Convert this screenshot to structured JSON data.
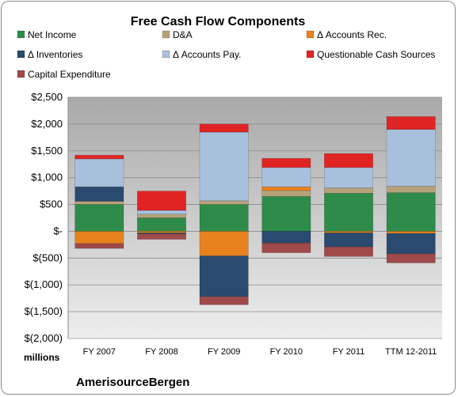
{
  "chart_data": {
    "type": "bar",
    "stacked": true,
    "title": "Free Cash Flow Components",
    "categories": [
      "FY 2007",
      "FY 2008",
      "FY 2009",
      "FY 2010",
      "FY 2011",
      "TTM 12-2011"
    ],
    "ylim": [
      -2000,
      2500
    ],
    "yticks": [
      2500,
      2000,
      1500,
      1000,
      500,
      0,
      -500,
      -1000,
      -1500,
      -2000
    ],
    "ytick_labels": [
      "$2,500",
      "$2,000",
      "$1,500",
      "$1,000",
      "$500",
      "$-",
      "$(500)",
      "$(1,000)",
      "$(1,500)",
      "$(2,000)"
    ],
    "unit_label": "millions",
    "grid": true,
    "legend_position": "top",
    "series": [
      {
        "name": "Net Income",
        "color": "#2e8b4a",
        "values": [
          500,
          250,
          500,
          650,
          710,
          720
        ]
      },
      {
        "name": "D&A",
        "color": "#b5a27a",
        "values": [
          60,
          70,
          70,
          110,
          100,
          120
        ]
      },
      {
        "name": "Δ Accounts Rec.",
        "color": "#e8821e",
        "values": [
          -230,
          -30,
          -460,
          70,
          -30,
          -40
        ]
      },
      {
        "name": "Δ Inventories",
        "color": "#2b4a6f",
        "values": [
          270,
          -20,
          -760,
          -220,
          -260,
          -380
        ]
      },
      {
        "name": "Δ Accounts Pay.",
        "color": "#a9c0dd",
        "values": [
          520,
          70,
          1280,
          360,
          380,
          1060
        ]
      },
      {
        "name": "Questionable Cash Sources",
        "color": "#e02424",
        "values": [
          70,
          360,
          150,
          170,
          260,
          240
        ]
      },
      {
        "name": "Capital Expenditure",
        "color": "#9e4a4a",
        "values": [
          -90,
          -100,
          -150,
          -180,
          -180,
          -170
        ]
      }
    ]
  },
  "footer": {
    "company": "AmerisourceBergen"
  }
}
